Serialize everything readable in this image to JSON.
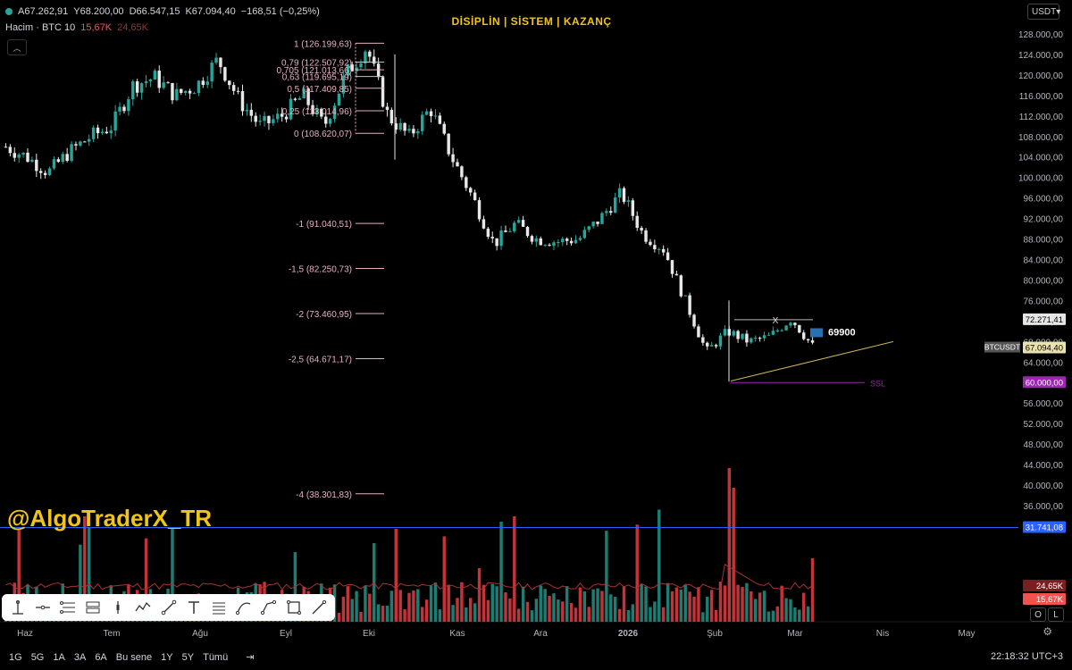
{
  "header": {
    "ohlc": {
      "open": "A67.262,91",
      "high": "Y68.200,00",
      "low": "D66.547,15",
      "close": "K67.094,40",
      "change": "−168,51 (−0,25%)"
    },
    "volume_label": "Hacim · BTC 10",
    "volume_value": "15,67K",
    "volume_ma": "24,65K",
    "title": "DİSİPLİN | SİSTEM | KAZANÇ",
    "currency": "USDT"
  },
  "watermark": "@AlgoTraderX_TR",
  "toolbar": {
    "tools": [
      "vertical-ray-icon",
      "horizontal-ray-icon",
      "fib-retracement-icon",
      "parallel-channel-icon",
      "long-position-icon",
      "path-icon",
      "trend-line-icon",
      "text-icon",
      "fib-extension-icon",
      "curve-icon",
      "polyline-icon",
      "rectangle-icon",
      "line-icon"
    ]
  },
  "scale_buttons": {
    "log": "O",
    "labels": "L"
  },
  "bottom_bar": {
    "ranges": [
      "1G",
      "5G",
      "1A",
      "3A",
      "6A",
      "Bu sene",
      "1Y",
      "5Y",
      "Tümü"
    ],
    "clock": "22:18:32 UTC+3"
  },
  "colors": {
    "up": "#26a69a",
    "down": "#ef5350",
    "fib": "#e6b0c0",
    "title": "#f0c419",
    "blue": "#2962ff",
    "ssl": "#9c27b0"
  },
  "chart_data": {
    "type": "candlestick",
    "symbol": "BTCUSDT",
    "ylim": [
      36000,
      130000
    ],
    "y_ticks": [
      36000,
      40000,
      44000,
      48000,
      52000,
      56000,
      60000,
      64000,
      68000,
      72000,
      76000,
      80000,
      84000,
      88000,
      92000,
      96000,
      100000,
      104000,
      108000,
      112000,
      116000,
      120000,
      124000,
      128000
    ],
    "y_tick_labels": [
      "36.000,00",
      "40.000,00",
      "44.000,00",
      "48.000,00",
      "52.000,00",
      "56.000,00",
      "60.000,00",
      "64.000,00",
      "68.000,00",
      "72.000,00",
      "76.000,00",
      "80.000,00",
      "84.000,00",
      "88.000,00",
      "92.000,00",
      "96.000,00",
      "100.000,00",
      "104.000,00",
      "108.000,00",
      "112.000,00",
      "116.000,00",
      "120.000,00",
      "124.000,00",
      "128.000,00"
    ],
    "x_labels": [
      "Haz",
      "Tem",
      "Ağu",
      "Eyl",
      "Eki",
      "Kas",
      "Ara",
      "2026",
      "Şub",
      "Mar",
      "Nis",
      "May"
    ],
    "close_path": [
      {
        "m": "Haz",
        "p": 106000
      },
      {
        "m": "Haz",
        "p": 104000
      },
      {
        "m": "Haz",
        "p": 101000
      },
      {
        "m": "Haz",
        "p": 105000
      },
      {
        "m": "Tem",
        "p": 108000
      },
      {
        "m": "Tem",
        "p": 110000
      },
      {
        "m": "Tem",
        "p": 118000
      },
      {
        "m": "Tem",
        "p": 119500
      },
      {
        "m": "Ağu",
        "p": 116000
      },
      {
        "m": "Ağu",
        "p": 118000
      },
      {
        "m": "Ağu",
        "p": 123000
      },
      {
        "m": "Ağu",
        "p": 115000
      },
      {
        "m": "Eyl",
        "p": 110000
      },
      {
        "m": "Eyl",
        "p": 112000
      },
      {
        "m": "Eyl",
        "p": 116000
      },
      {
        "m": "Eyl",
        "p": 110000
      },
      {
        "m": "Eki",
        "p": 120000
      },
      {
        "m": "Eki",
        "p": 125500
      },
      {
        "m": "Eki",
        "p": 112000
      },
      {
        "m": "Eki",
        "p": 108000
      },
      {
        "m": "Kas",
        "p": 113500
      },
      {
        "m": "Kas",
        "p": 104000
      },
      {
        "m": "Kas",
        "p": 96000
      },
      {
        "m": "Kas",
        "p": 87000
      },
      {
        "m": "Ara",
        "p": 91000
      },
      {
        "m": "Ara",
        "p": 88000
      },
      {
        "m": "Ara",
        "p": 87500
      },
      {
        "m": "Ara",
        "p": 88000
      },
      {
        "m": "2026",
        "p": 92000
      },
      {
        "m": "2026",
        "p": 97000
      },
      {
        "m": "2026",
        "p": 89000
      },
      {
        "m": "2026",
        "p": 86000
      },
      {
        "m": "Şub",
        "p": 76000
      },
      {
        "m": "Şub",
        "p": 66000
      },
      {
        "m": "Şub",
        "p": 70000
      },
      {
        "m": "Şub",
        "p": 68000
      },
      {
        "m": "Mar",
        "p": 69000
      },
      {
        "m": "Mar",
        "p": 72500
      },
      {
        "m": "Mar",
        "p": 67094
      }
    ],
    "fib_levels": [
      {
        "ratio": "1",
        "label": "1 (126.199,63)",
        "price": 126199.63
      },
      {
        "ratio": "0,79",
        "label": "0,79 (122.507,92)",
        "price": 122507.92
      },
      {
        "ratio": "0,705",
        "label": "0,705 (121.013,66)",
        "price": 121013.66
      },
      {
        "ratio": "0,63",
        "label": "0,63 (119.695,19)",
        "price": 119695.19
      },
      {
        "ratio": "0,5",
        "label": "0,5 (117.409,85)",
        "price": 117409.85
      },
      {
        "ratio": "0,25",
        "label": "0,25 (113.014,96)",
        "price": 113014.96
      },
      {
        "ratio": "0",
        "label": "0 (108.620,07)",
        "price": 108620.07
      },
      {
        "ratio": "-1",
        "label": "-1 (91.040,51)",
        "price": 91040.51
      },
      {
        "ratio": "-1,5",
        "label": "-1,5 (82.250,73)",
        "price": 82250.73
      },
      {
        "ratio": "-2",
        "label": "-2 (73.460,95)",
        "price": 73460.95
      },
      {
        "ratio": "-2,5",
        "label": "-2,5 (64.671,17)",
        "price": 64671.17
      },
      {
        "ratio": "-4",
        "label": "-4 (38.301,83)",
        "price": 38301.83
      }
    ],
    "annotations": {
      "x_label": "X",
      "x_level": 72271.41,
      "target": "69900",
      "target_price": 69900,
      "ssl_label": "SSL",
      "ssl_price": 60000,
      "blue_line": 31741.08
    },
    "price_tags": [
      {
        "text": "72.271,41",
        "price": 72271.41,
        "kind": "plain"
      },
      {
        "text": "67.094,40",
        "price": 67094.4,
        "kind": "current"
      },
      {
        "text": "60.000,00",
        "price": 60000,
        "kind": "ssl"
      },
      {
        "text": "31.741,08",
        "price": 31741.08,
        "kind": "blue"
      },
      {
        "text": "24,65K",
        "price": 24650,
        "kind": "vol-ma"
      },
      {
        "text": "15,67K",
        "price": 15670,
        "kind": "vol"
      }
    ],
    "symbol_tag": "BTCUSDT",
    "volume": {
      "ma": "24,65K",
      "last": "15,67K"
    }
  }
}
